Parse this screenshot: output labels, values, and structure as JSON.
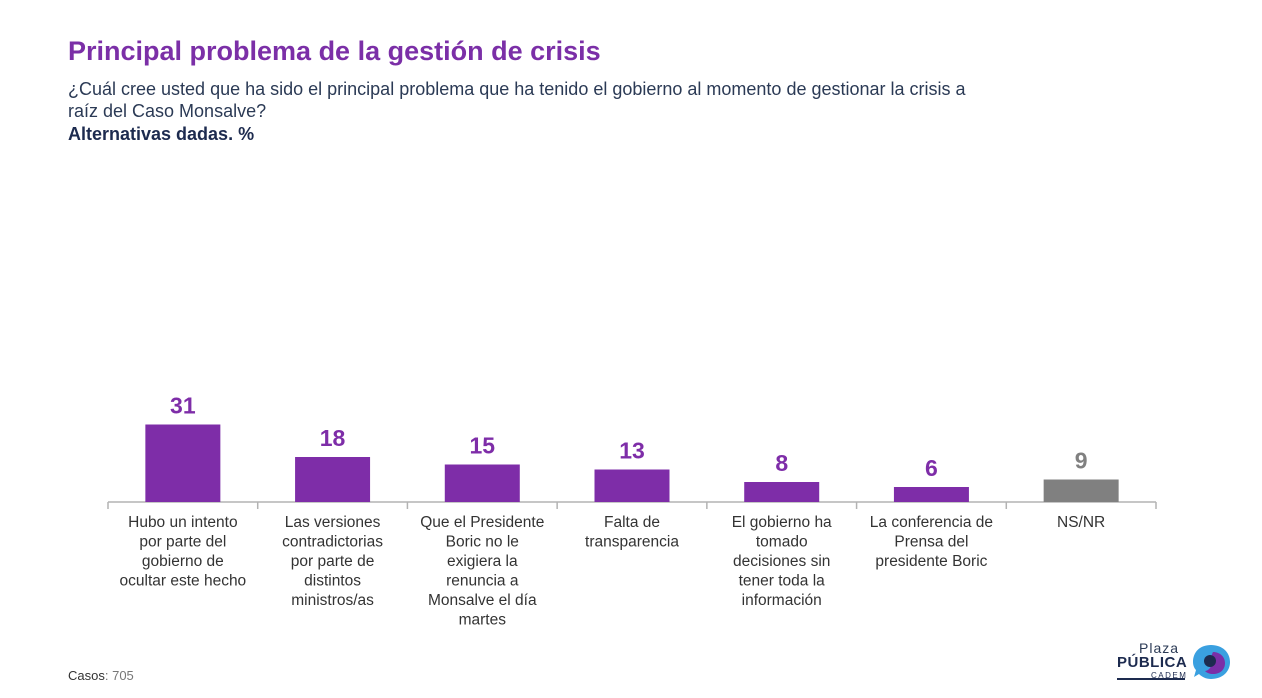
{
  "header": {
    "title": "Principal problema de la gestión de crisis",
    "question": "¿Cuál cree usted que ha sido el principal problema que ha tenido el gobierno al momento de gestionar la crisis a raíz del Caso Monsalve?",
    "note": "Alternativas dadas. %"
  },
  "footer": {
    "casos_label": "Casos",
    "casos_value": ": 705"
  },
  "logo": {
    "plaza": "Plaza",
    "publica": "PÚBLICA",
    "cadem": "CADEM"
  },
  "colors": {
    "title": "#7B2FA7",
    "bar": "#7E2DA8",
    "bar_nsnr": "#808080",
    "value_label": "#7E2DA8",
    "value_label_nsnr": "#808080"
  },
  "chart_data": {
    "type": "bar",
    "categories": [
      [
        "Hubo un intento",
        "por parte del",
        "gobierno de",
        "ocultar este hecho"
      ],
      [
        "Las versiones",
        "contradictorias",
        "por parte de",
        "distintos",
        "ministros/as"
      ],
      [
        "Que el Presidente",
        "Boric no le",
        "exigiera la",
        "renuncia a",
        "Monsalve el día",
        "martes"
      ],
      [
        "Falta de",
        "transparencia"
      ],
      [
        "El gobierno ha",
        "tomado",
        "decisiones sin",
        "tener toda la",
        "información"
      ],
      [
        "La conferencia de",
        "Prensa del",
        "presidente Boric"
      ],
      [
        "NS/NR"
      ]
    ],
    "values": [
      31,
      18,
      15,
      13,
      8,
      6,
      9
    ],
    "ylim": [
      0,
      35
    ],
    "grid": false,
    "legend": "none"
  }
}
